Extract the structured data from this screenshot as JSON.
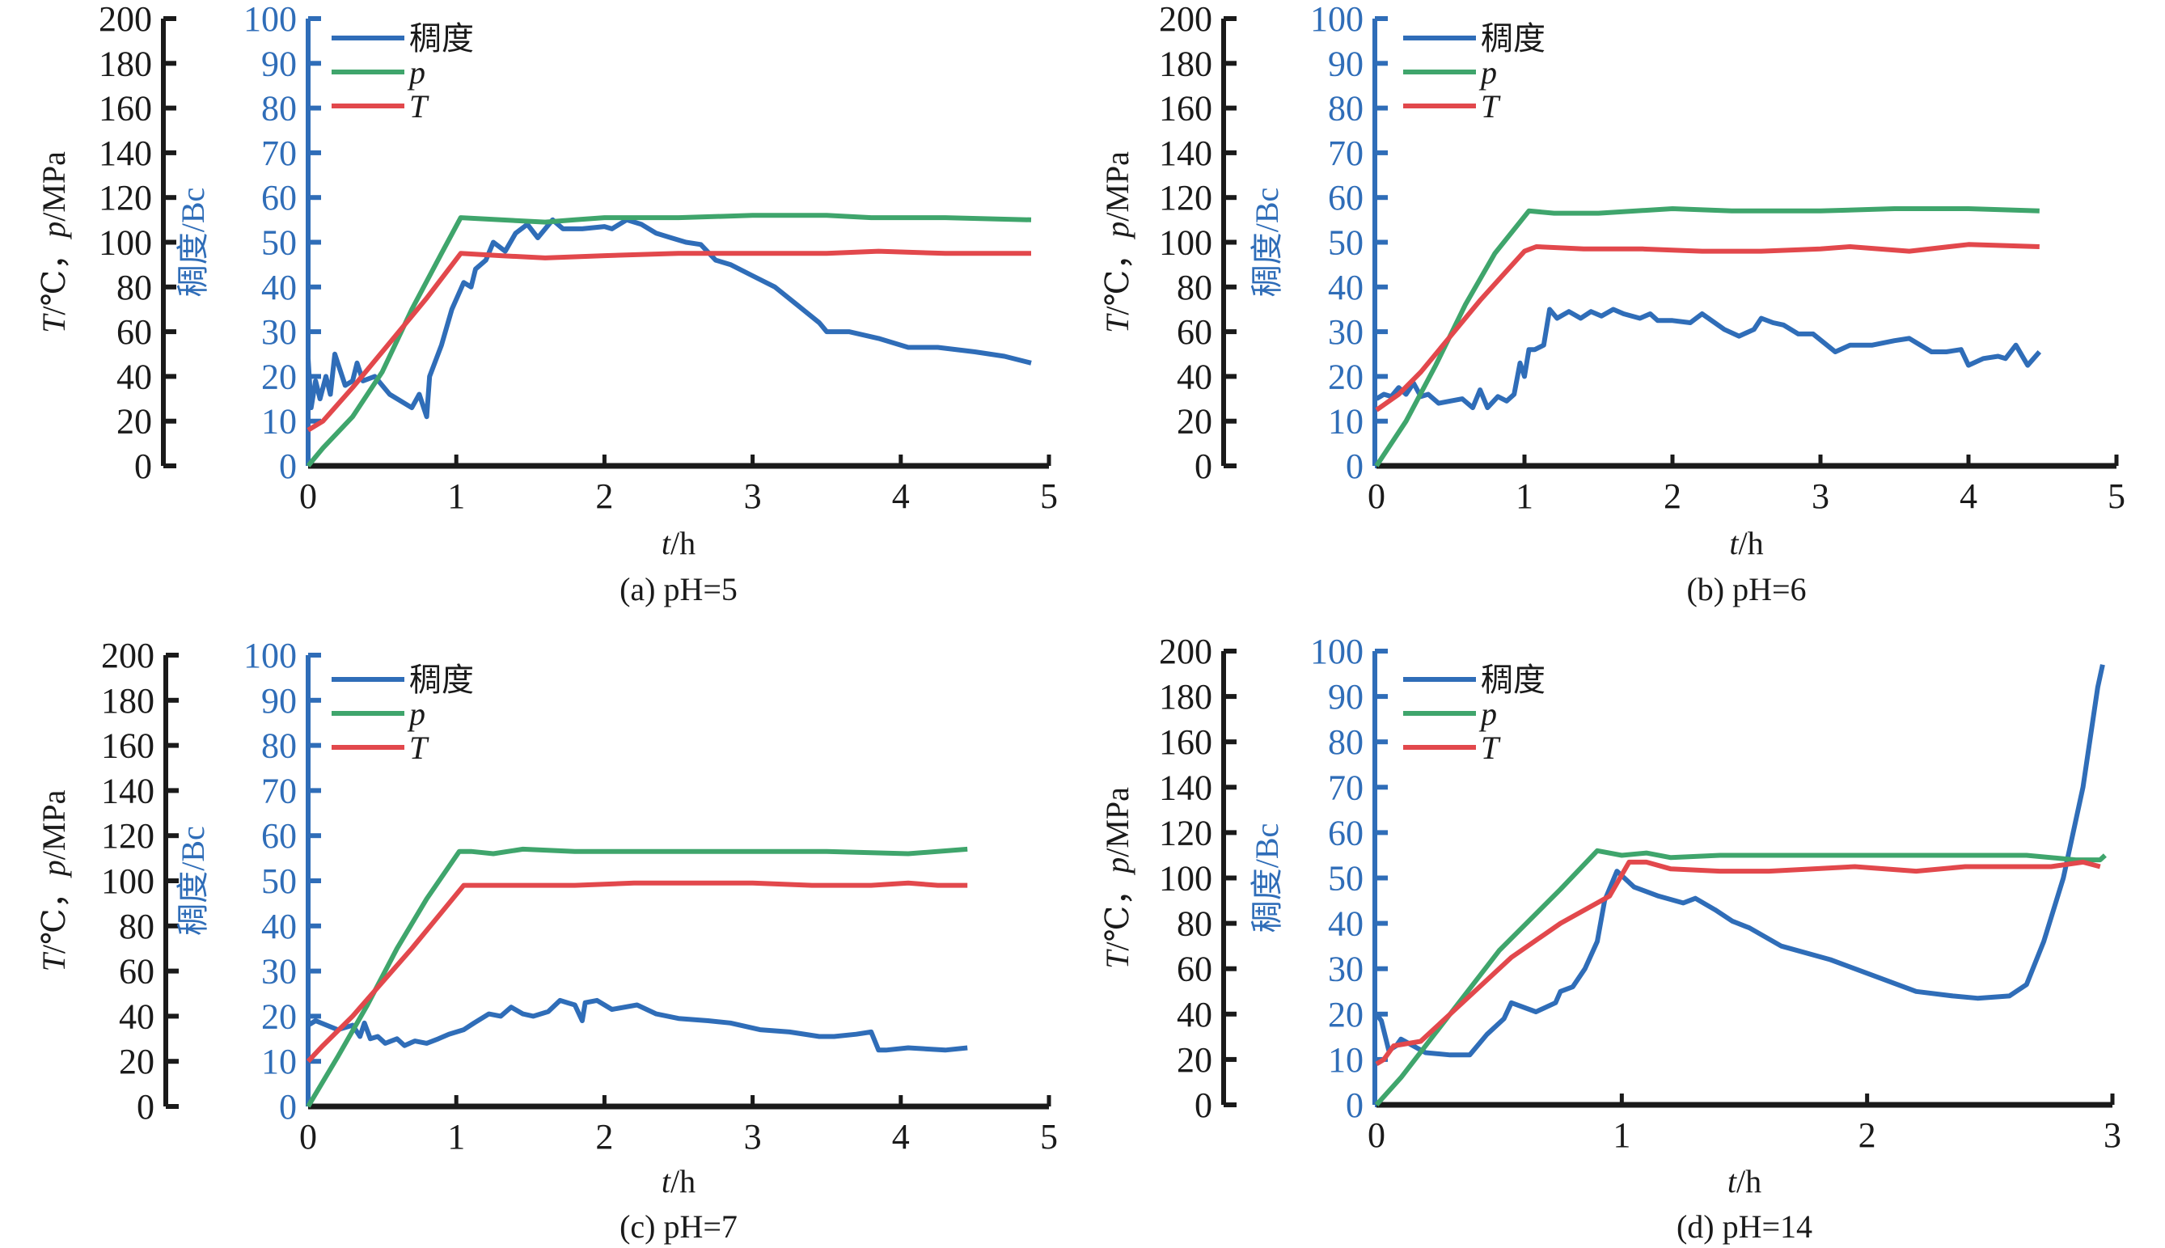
{
  "figure": {
    "colors": {
      "consistency": "#2f6db8",
      "pressure": "#3fa56c",
      "temperature": "#e2484c",
      "axis": "#1a1a1a"
    }
  },
  "chart_data": [
    {
      "type": "line",
      "caption": "(a) pH=5",
      "xlabel_var": "t",
      "xlabel_unit": "/h",
      "ylabel_left": "T/℃，p/MPa",
      "ylabel_left_parts": {
        "T": "T",
        "deg": "/℃，",
        "p": "p",
        "unit": "/MPa"
      },
      "ylabel_right": "稠度/Bc",
      "xlim": [
        0,
        5
      ],
      "ylim_left": [
        0,
        200
      ],
      "ylim_right": [
        0,
        100
      ],
      "xticks": [
        "0",
        "1",
        "2",
        "3",
        "4",
        "5"
      ],
      "yticks_left": [
        "0",
        "20",
        "40",
        "60",
        "80",
        "100",
        "120",
        "140",
        "160",
        "180",
        "200"
      ],
      "yticks_right": [
        "0",
        "10",
        "20",
        "30",
        "40",
        "50",
        "60",
        "70",
        "80",
        "90",
        "100"
      ],
      "legend": [
        "稠度",
        "p",
        "T"
      ],
      "legend_position": "top-left",
      "series": [
        {
          "name": "稠度",
          "axis": "right",
          "x": [
            0,
            0.02,
            0.05,
            0.08,
            0.12,
            0.15,
            0.18,
            0.25,
            0.3,
            0.33,
            0.37,
            0.45,
            0.55,
            0.7,
            0.75,
            0.8,
            0.82,
            0.9,
            0.97,
            1.05,
            1.1,
            1.13,
            1.2,
            1.25,
            1.33,
            1.4,
            1.48,
            1.55,
            1.65,
            1.72,
            1.85,
            2.0,
            2.05,
            2.15,
            2.25,
            2.35,
            2.45,
            2.55,
            2.65,
            2.75,
            2.85,
            3.0,
            3.15,
            3.3,
            3.45,
            3.5,
            3.65,
            3.85,
            4.05,
            4.25,
            4.5,
            4.7,
            4.88
          ],
          "y": [
            24,
            13,
            19,
            15,
            20,
            16,
            25,
            18,
            19,
            23,
            19,
            20,
            16,
            13,
            16,
            11,
            20,
            27,
            35,
            41,
            40,
            44,
            46,
            50,
            48,
            52,
            54,
            51,
            55,
            53,
            53,
            53.5,
            53,
            55,
            54,
            52,
            51,
            50,
            49.5,
            46,
            45,
            42.5,
            40,
            36,
            32,
            30,
            30,
            28.5,
            26.5,
            26.5,
            25.5,
            24.5,
            23
          ]
        },
        {
          "name": "p",
          "axis": "left",
          "x": [
            0,
            0.1,
            0.3,
            0.5,
            0.7,
            0.9,
            1.03,
            1.3,
            1.6,
            1.8,
            2.0,
            2.5,
            3.0,
            3.5,
            3.8,
            4.3,
            4.88
          ],
          "y": [
            0,
            8,
            22,
            42,
            70,
            95,
            111,
            110,
            109,
            110,
            111,
            111,
            112,
            112,
            111,
            111,
            110
          ]
        },
        {
          "name": "T",
          "axis": "left",
          "x": [
            0,
            0.1,
            0.3,
            0.55,
            0.8,
            1.03,
            1.3,
            1.6,
            2.0,
            2.5,
            3.0,
            3.5,
            3.85,
            4.3,
            4.88
          ],
          "y": [
            16,
            20,
            35,
            55,
            75,
            95,
            94,
            93,
            94,
            95,
            95,
            95,
            96,
            95,
            95
          ]
        }
      ]
    },
    {
      "type": "line",
      "caption": "(b) pH=6",
      "xlabel_var": "t",
      "xlabel_unit": "/h",
      "ylabel_left": "T/℃，p/MPa",
      "ylabel_left_parts": {
        "T": "T",
        "deg": "/℃，",
        "p": "p",
        "unit": "/MPa"
      },
      "ylabel_right": "稠度/Bc",
      "xlim": [
        0,
        5
      ],
      "ylim_left": [
        0,
        200
      ],
      "ylim_right": [
        0,
        100
      ],
      "xticks": [
        "0",
        "1",
        "2",
        "3",
        "4",
        "5"
      ],
      "yticks_left": [
        "0",
        "20",
        "40",
        "60",
        "80",
        "100",
        "120",
        "140",
        "160",
        "180",
        "200"
      ],
      "yticks_right": [
        "0",
        "10",
        "20",
        "30",
        "40",
        "50",
        "60",
        "70",
        "80",
        "90",
        "100"
      ],
      "legend": [
        "稠度",
        "p",
        "T"
      ],
      "legend_position": "top-left",
      "series": [
        {
          "name": "稠度",
          "axis": "right",
          "x": [
            0,
            0.05,
            0.1,
            0.15,
            0.2,
            0.25,
            0.3,
            0.35,
            0.42,
            0.5,
            0.58,
            0.65,
            0.7,
            0.75,
            0.82,
            0.88,
            0.93,
            0.97,
            1.0,
            1.03,
            1.07,
            1.13,
            1.17,
            1.22,
            1.3,
            1.38,
            1.45,
            1.52,
            1.6,
            1.67,
            1.78,
            1.85,
            1.9,
            2.0,
            2.12,
            2.2,
            2.35,
            2.45,
            2.55,
            2.6,
            2.68,
            2.75,
            2.85,
            2.95,
            3.1,
            3.2,
            3.35,
            3.5,
            3.6,
            3.75,
            3.85,
            3.95,
            4.0,
            4.1,
            4.2,
            4.25,
            4.32,
            4.4,
            4.48
          ],
          "y": [
            15,
            16,
            15.5,
            17.5,
            16,
            18.5,
            15.5,
            16,
            14,
            14.5,
            15,
            13,
            17,
            13,
            15.5,
            14.5,
            16,
            23,
            20,
            26,
            26,
            27,
            35,
            33,
            34.5,
            33,
            34.5,
            33.5,
            35,
            34,
            33,
            34,
            32.5,
            32.5,
            32,
            34,
            30.5,
            29,
            30.5,
            33,
            32,
            31.5,
            29.5,
            29.5,
            25.5,
            27,
            27,
            28,
            28.5,
            25.5,
            25.5,
            26,
            22.5,
            24,
            24.5,
            24,
            27,
            22.5,
            25.5
          ]
        },
        {
          "name": "p",
          "axis": "left",
          "x": [
            0,
            0.2,
            0.4,
            0.6,
            0.8,
            1.03,
            1.2,
            1.5,
            2.0,
            2.4,
            3.0,
            3.5,
            4.0,
            4.48
          ],
          "y": [
            0,
            20,
            45,
            72,
            95,
            114,
            113,
            113,
            115,
            114,
            114,
            115,
            115,
            114
          ]
        },
        {
          "name": "T",
          "axis": "left",
          "x": [
            0,
            0.15,
            0.3,
            0.5,
            0.7,
            0.85,
            1.0,
            1.08,
            1.4,
            1.8,
            2.2,
            2.6,
            3.0,
            3.2,
            3.6,
            4.0,
            4.48
          ],
          "y": [
            25,
            32,
            42,
            58,
            74,
            85,
            96,
            98,
            97,
            97,
            96,
            96,
            97,
            98,
            96,
            99,
            98
          ]
        }
      ]
    },
    {
      "type": "line",
      "caption": "(c) pH=7",
      "xlabel_var": "t",
      "xlabel_unit": "/h",
      "ylabel_left": "T/℃，p/MPa",
      "ylabel_left_parts": {
        "T": "T",
        "deg": "/℃，",
        "p": "p",
        "unit": "/MPa"
      },
      "ylabel_right": "稠度/Bc",
      "xlim": [
        0,
        5
      ],
      "ylim_left": [
        0,
        200
      ],
      "ylim_right": [
        0,
        100
      ],
      "xticks": [
        "0",
        "1",
        "2",
        "3",
        "4",
        "5"
      ],
      "yticks_left": [
        "0",
        "20",
        "40",
        "60",
        "80",
        "100",
        "120",
        "140",
        "160",
        "180",
        "200"
      ],
      "yticks_right": [
        "0",
        "10",
        "20",
        "30",
        "40",
        "50",
        "60",
        "70",
        "80",
        "90",
        "100"
      ],
      "legend": [
        "稠度",
        "p",
        "T"
      ],
      "legend_position": "top-left",
      "series": [
        {
          "name": "稠度",
          "axis": "right",
          "x": [
            0,
            0.05,
            0.2,
            0.3,
            0.35,
            0.38,
            0.42,
            0.47,
            0.52,
            0.6,
            0.65,
            0.72,
            0.8,
            0.88,
            0.95,
            1.05,
            1.12,
            1.22,
            1.3,
            1.37,
            1.45,
            1.52,
            1.62,
            1.7,
            1.75,
            1.8,
            1.85,
            1.87,
            1.95,
            2.05,
            2.22,
            2.35,
            2.5,
            2.7,
            2.85,
            3.05,
            3.25,
            3.45,
            3.55,
            3.7,
            3.8,
            3.85,
            3.9,
            4.05,
            4.3,
            4.45
          ],
          "y": [
            18,
            19,
            17,
            18,
            15.5,
            18.5,
            15,
            15.5,
            14,
            15,
            13.5,
            14.5,
            14,
            15,
            16,
            17,
            18.5,
            20.5,
            20,
            22,
            20.5,
            20,
            21,
            23.5,
            23,
            22.5,
            19,
            23,
            23.5,
            21.5,
            22.5,
            20.5,
            19.5,
            19,
            18.5,
            17,
            16.5,
            15.5,
            15.5,
            16,
            16.5,
            12.5,
            12.5,
            13,
            12.5,
            13
          ]
        },
        {
          "name": "p",
          "axis": "left",
          "x": [
            0,
            0.2,
            0.4,
            0.6,
            0.8,
            1.02,
            1.1,
            1.25,
            1.45,
            1.8,
            2.3,
            2.9,
            3.5,
            4.05,
            4.45
          ],
          "y": [
            0,
            22,
            45,
            70,
            92,
            113,
            113,
            112,
            114,
            113,
            113,
            113,
            113,
            112,
            114
          ]
        },
        {
          "name": "T",
          "axis": "left",
          "x": [
            0,
            0.1,
            0.3,
            0.5,
            0.7,
            0.9,
            1.05,
            1.4,
            1.8,
            2.2,
            2.6,
            3.0,
            3.4,
            3.8,
            4.05,
            4.25,
            4.45
          ],
          "y": [
            20,
            27,
            40,
            55,
            70,
            86,
            98,
            98,
            98,
            99,
            99,
            99,
            98,
            98,
            99,
            98,
            98
          ]
        }
      ]
    },
    {
      "type": "line",
      "caption": "(d) pH=14",
      "xlabel_var": "t",
      "xlabel_unit": "/h",
      "ylabel_left": "T/℃，p/MPa",
      "ylabel_left_parts": {
        "T": "T",
        "deg": "/℃，",
        "p": "p",
        "unit": "/MPa"
      },
      "ylabel_right": "稠度/Bc",
      "xlim": [
        0,
        3
      ],
      "ylim_left": [
        0,
        200
      ],
      "ylim_right": [
        0,
        100
      ],
      "xticks": [
        "0",
        "1",
        "2",
        "3"
      ],
      "yticks_left": [
        "0",
        "20",
        "40",
        "60",
        "80",
        "100",
        "120",
        "140",
        "160",
        "180",
        "200"
      ],
      "yticks_right": [
        "0",
        "10",
        "20",
        "30",
        "40",
        "50",
        "60",
        "70",
        "80",
        "90",
        "100"
      ],
      "legend": [
        "稠度",
        "p",
        "T"
      ],
      "legend_position": "top-left",
      "series": [
        {
          "name": "稠度",
          "axis": "right",
          "x": [
            0,
            0.02,
            0.05,
            0.08,
            0.1,
            0.15,
            0.2,
            0.3,
            0.38,
            0.45,
            0.52,
            0.55,
            0.65,
            0.73,
            0.75,
            0.8,
            0.85,
            0.9,
            0.93,
            0.98,
            1.05,
            1.15,
            1.25,
            1.3,
            1.38,
            1.45,
            1.52,
            1.65,
            1.85,
            2.05,
            2.2,
            2.35,
            2.45,
            2.58,
            2.65,
            2.72,
            2.8,
            2.88,
            2.94,
            2.96
          ],
          "y": [
            20,
            18.5,
            12,
            13,
            14.5,
            13,
            11.5,
            11,
            11,
            15.5,
            19,
            22.5,
            20.5,
            22.5,
            25,
            26,
            30,
            36,
            45,
            51.5,
            48,
            46,
            44.5,
            45.5,
            43,
            40.5,
            39,
            35,
            32,
            28,
            25,
            24,
            23.5,
            24,
            26.5,
            36,
            50,
            70,
            92,
            97
          ]
        },
        {
          "name": "p",
          "axis": "left",
          "x": [
            0,
            0.1,
            0.3,
            0.5,
            0.75,
            0.9,
            1.0,
            1.1,
            1.2,
            1.4,
            1.8,
            2.3,
            2.65,
            2.85,
            2.95,
            2.97
          ],
          "y": [
            0,
            12,
            40,
            68,
            95,
            112,
            110,
            111,
            109,
            110,
            110,
            110,
            110,
            108,
            108,
            110
          ]
        },
        {
          "name": "T",
          "axis": "left",
          "x": [
            0,
            0.03,
            0.07,
            0.18,
            0.35,
            0.55,
            0.75,
            0.95,
            1.03,
            1.1,
            1.2,
            1.4,
            1.6,
            1.95,
            2.2,
            2.4,
            2.75,
            2.88,
            2.95
          ],
          "y": [
            18,
            20,
            26,
            28,
            45,
            65,
            80,
            92,
            107,
            107,
            104,
            103,
            103,
            105,
            103,
            105,
            105,
            107,
            105
          ]
        }
      ]
    }
  ]
}
